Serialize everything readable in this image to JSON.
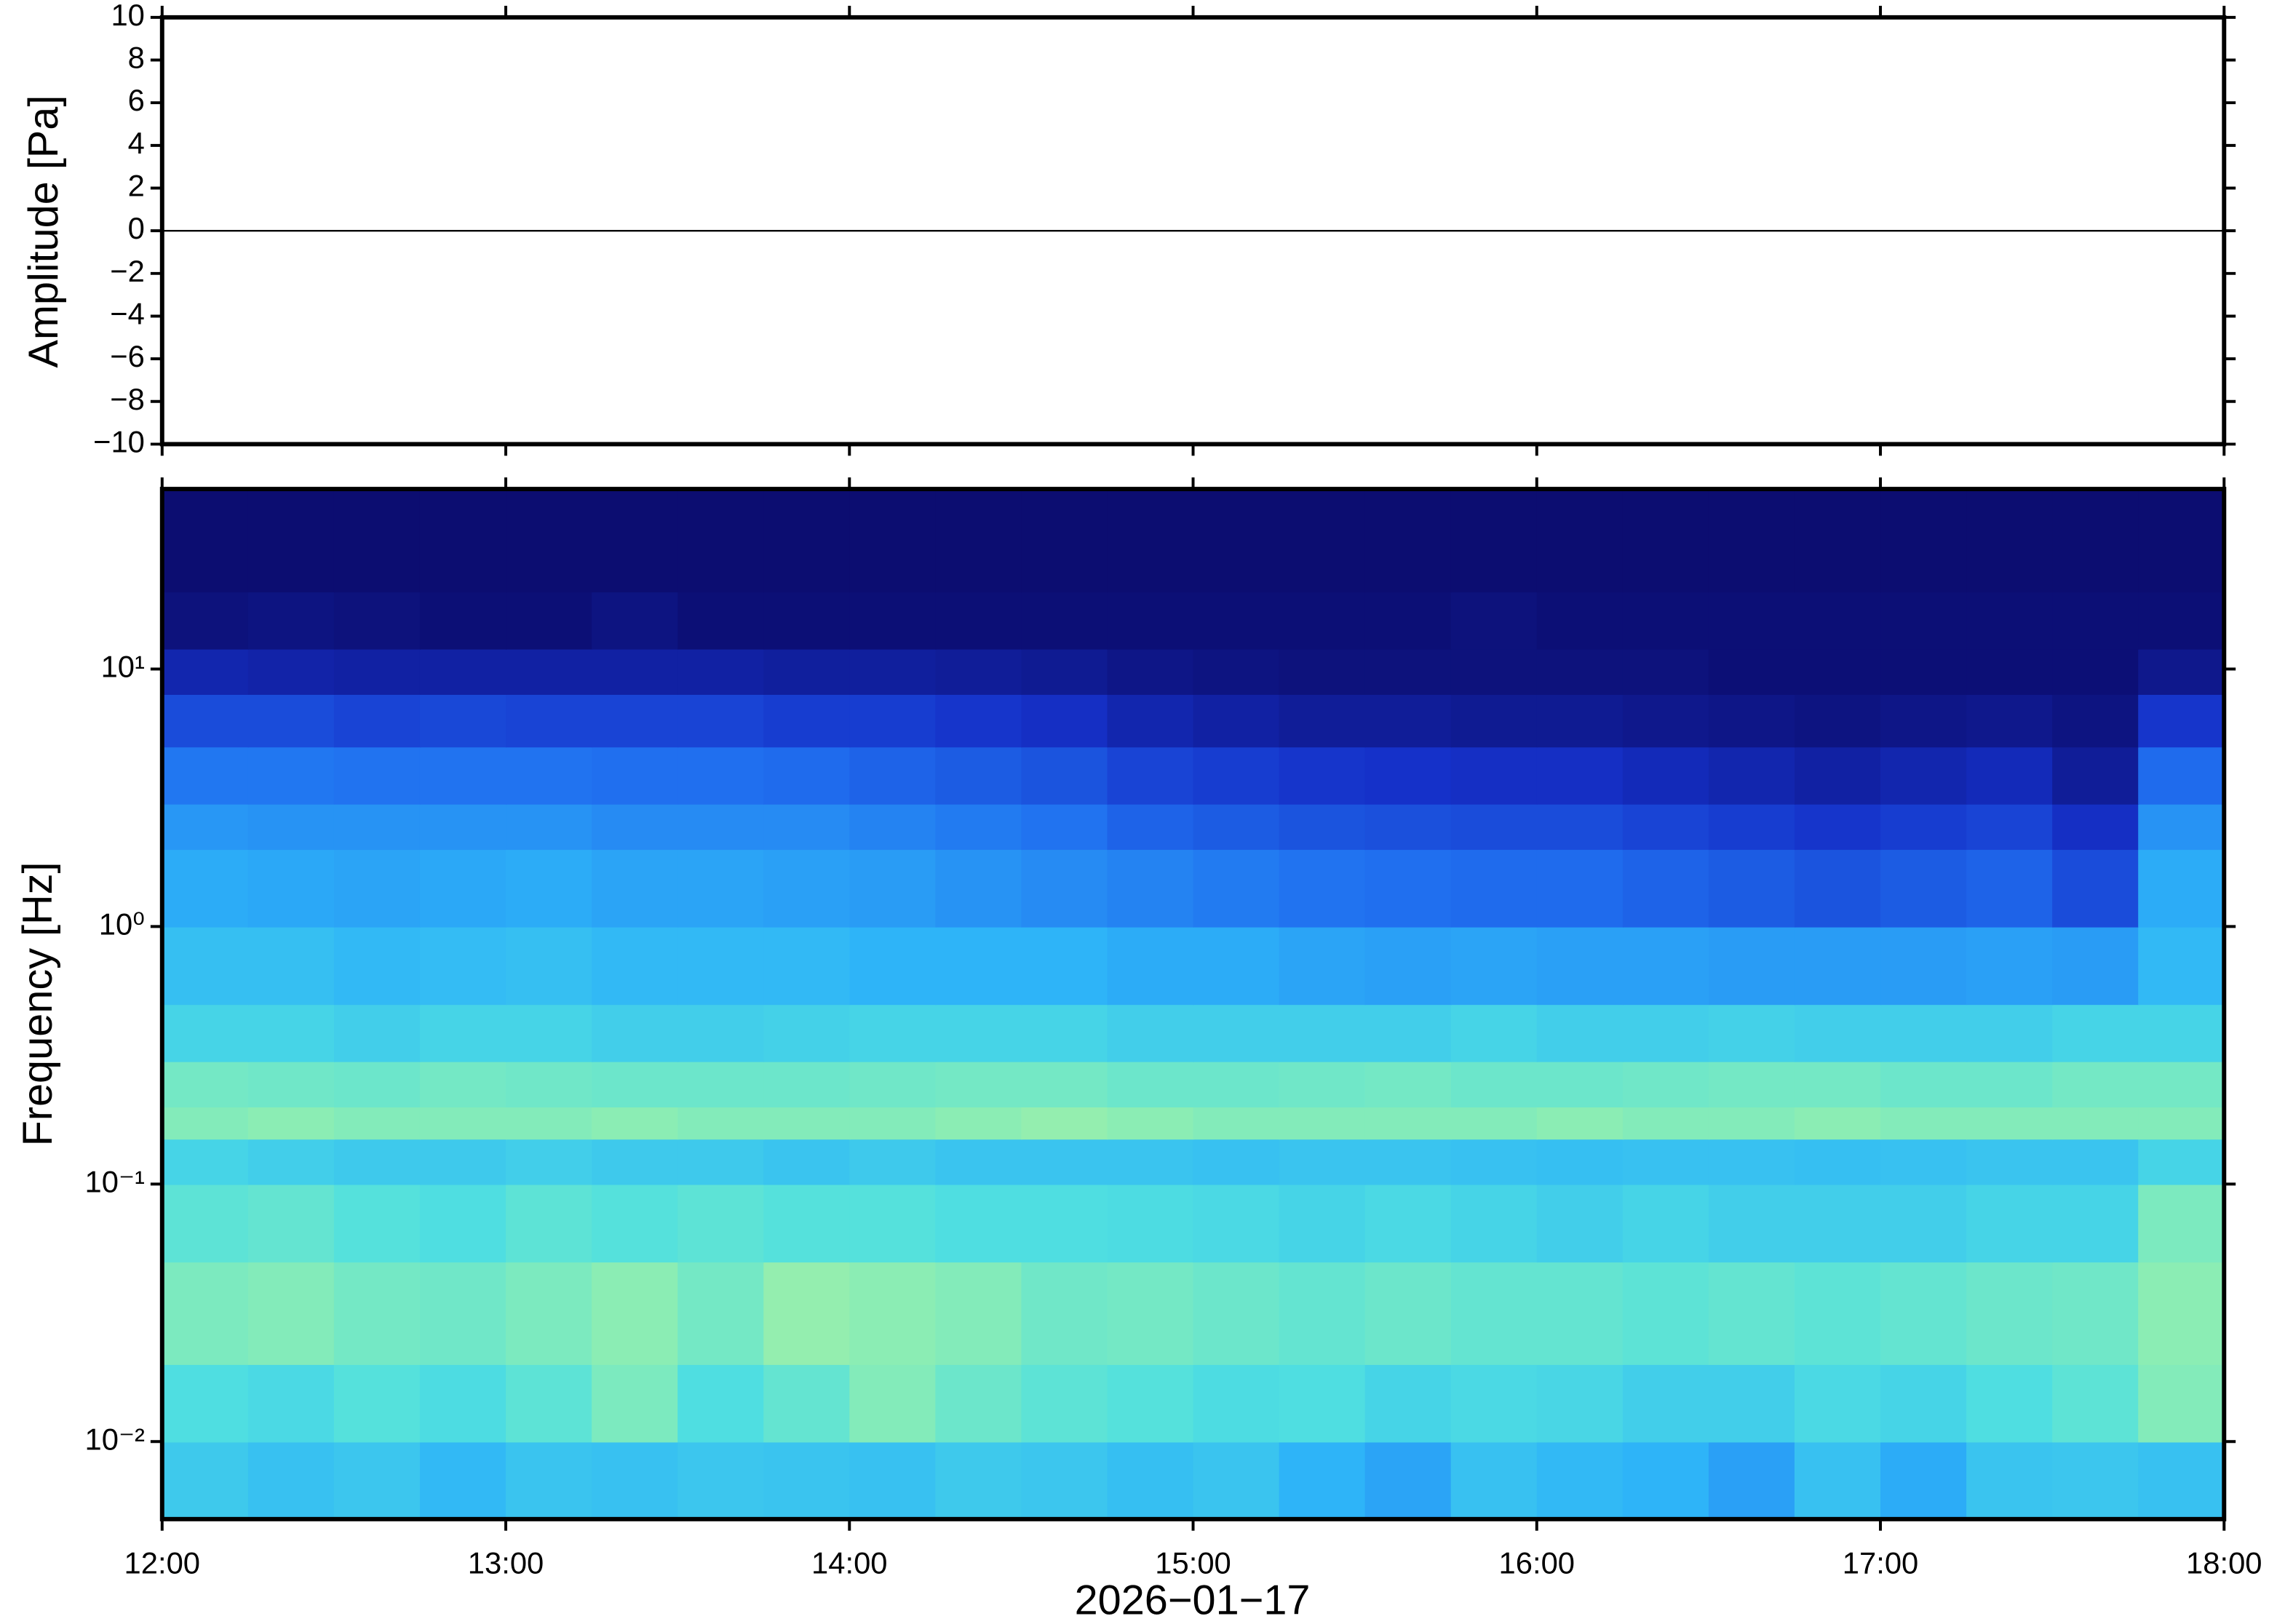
{
  "chart_data": [
    {
      "type": "line",
      "ylabel": "Amplitude [Pa]",
      "xlim": [
        12,
        18
      ],
      "ylim": [
        -10,
        10
      ],
      "yticks": [
        {
          "value": -10,
          "label": "−10"
        },
        {
          "value": -8,
          "label": "−8"
        },
        {
          "value": -6,
          "label": "−6"
        },
        {
          "value": -4,
          "label": "−4"
        },
        {
          "value": -2,
          "label": "−2"
        },
        0,
        2,
        4,
        6,
        8,
        10
      ],
      "x": [
        12,
        12.5,
        13,
        13.5,
        14,
        14.5,
        15,
        15.5,
        16,
        16.5,
        17,
        17.5,
        18
      ],
      "values": [
        0,
        0,
        0,
        0,
        0,
        0,
        0,
        0,
        0,
        0,
        0,
        0,
        0
      ],
      "color": "#000000"
    },
    {
      "type": "heatmap",
      "ylabel": "Frequency [Hz]",
      "xlabel": "2026−01−17",
      "xlim": [
        12,
        18
      ],
      "ylim": [
        0.005,
        50
      ],
      "yscale": "log",
      "xticks": [
        {
          "value": 12,
          "label": "12:00"
        },
        {
          "value": 13,
          "label": "13:00"
        },
        {
          "value": 14,
          "label": "14:00"
        },
        {
          "value": 15,
          "label": "15:00"
        },
        {
          "value": 16,
          "label": "16:00"
        },
        {
          "value": 17,
          "label": "17:00"
        },
        {
          "value": 18,
          "label": "18:00"
        }
      ],
      "yticks": [
        {
          "value": 0.01,
          "label": "10⁻²"
        },
        {
          "value": 0.1,
          "label": "10⁻¹"
        },
        {
          "value": 1,
          "label": "10⁰"
        },
        {
          "value": 10,
          "label": "10¹"
        }
      ],
      "zlim": [
        0,
        100
      ],
      "colormap": [
        "#0b0b6b",
        "#1530c8",
        "#2070f0",
        "#2eb4f8",
        "#50e0e0",
        "#90eeb0",
        "#e8f28c"
      ],
      "xbins": [
        12,
        12.25,
        12.5,
        12.75,
        13,
        13.25,
        13.5,
        13.75,
        14,
        14.25,
        14.5,
        14.75,
        15,
        15.25,
        15.5,
        15.75,
        16,
        16.25,
        16.5,
        16.75,
        17,
        17.25,
        17.5,
        17.75,
        18
      ],
      "ybins": [
        0.005,
        0.01,
        0.02,
        0.05,
        0.1,
        0.15,
        0.2,
        0.3,
        0.5,
        1,
        2,
        3,
        5,
        8,
        12,
        20,
        50
      ],
      "z": [
        [
          58,
          55,
          57,
          52,
          56,
          55,
          57,
          56,
          55,
          58,
          57,
          54,
          56,
          50,
          46,
          55,
          52,
          50,
          45,
          55,
          48,
          56,
          57,
          55
        ],
        [
          66,
          64,
          68,
          65,
          70,
          78,
          66,
          72,
          80,
          74,
          70,
          68,
          65,
          66,
          62,
          64,
          63,
          60,
          60,
          64,
          62,
          66,
          70,
          80
        ],
        [
          78,
          80,
          76,
          75,
          78,
          82,
          76,
          84,
          82,
          80,
          75,
          76,
          74,
          72,
          74,
          72,
          72,
          70,
          72,
          70,
          72,
          74,
          75,
          82
        ],
        [
          70,
          72,
          68,
          66,
          70,
          68,
          70,
          68,
          68,
          66,
          66,
          65,
          64,
          62,
          64,
          62,
          60,
          62,
          60,
          60,
          60,
          62,
          62,
          78
        ],
        [
          62,
          60,
          58,
          58,
          60,
          58,
          58,
          56,
          58,
          56,
          56,
          56,
          55,
          56,
          56,
          55,
          54,
          55,
          55,
          54,
          55,
          56,
          56,
          62
        ],
        [
          80,
          82,
          80,
          80,
          80,
          82,
          80,
          80,
          80,
          82,
          84,
          82,
          80,
          80,
          80,
          80,
          82,
          80,
          80,
          82,
          80,
          80,
          80,
          80
        ],
        [
          76,
          75,
          74,
          76,
          75,
          74,
          74,
          74,
          75,
          76,
          76,
          74,
          74,
          75,
          76,
          74,
          74,
          75,
          76,
          76,
          74,
          74,
          76,
          76
        ],
        [
          62,
          62,
          60,
          62,
          62,
          60,
          60,
          61,
          62,
          62,
          62,
          60,
          60,
          60,
          60,
          62,
          60,
          60,
          61,
          60,
          60,
          60,
          62,
          62
        ],
        [
          54,
          54,
          52,
          53,
          54,
          52,
          52,
          52,
          50,
          50,
          50,
          48,
          48,
          46,
          45,
          46,
          45,
          45,
          44,
          44,
          44,
          45,
          44,
          52
        ],
        [
          48,
          47,
          46,
          47,
          48,
          46,
          46,
          45,
          44,
          42,
          40,
          38,
          36,
          34,
          33,
          32,
          32,
          30,
          28,
          26,
          28,
          30,
          24,
          48
        ],
        [
          43,
          42,
          42,
          42,
          42,
          40,
          40,
          40,
          38,
          36,
          34,
          30,
          28,
          26,
          25,
          24,
          24,
          22,
          20,
          18,
          20,
          22,
          16,
          42
        ],
        [
          35,
          35,
          34,
          34,
          34,
          33,
          33,
          32,
          30,
          28,
          26,
          22,
          20,
          18,
          17,
          16,
          16,
          14,
          12,
          10,
          12,
          14,
          8,
          32
        ],
        [
          24,
          24,
          22,
          23,
          22,
          22,
          22,
          20,
          20,
          18,
          16,
          12,
          10,
          8,
          8,
          7,
          7,
          6,
          5,
          4,
          5,
          6,
          4,
          18
        ],
        [
          12,
          11,
          10,
          10,
          10,
          10,
          10,
          9,
          9,
          8,
          7,
          5,
          4,
          3,
          3,
          3,
          3,
          3,
          2,
          2,
          2,
          2,
          2,
          6
        ],
        [
          3,
          4,
          3,
          2,
          2,
          4,
          2,
          2,
          2,
          2,
          2,
          2,
          2,
          2,
          2,
          3,
          2,
          2,
          2,
          2,
          2,
          2,
          2,
          2
        ],
        [
          1,
          1,
          1,
          1,
          1,
          1,
          1,
          1,
          1,
          1,
          1,
          1,
          1,
          1,
          1,
          1,
          1,
          1,
          1,
          1,
          1,
          1,
          1,
          1
        ]
      ]
    }
  ]
}
